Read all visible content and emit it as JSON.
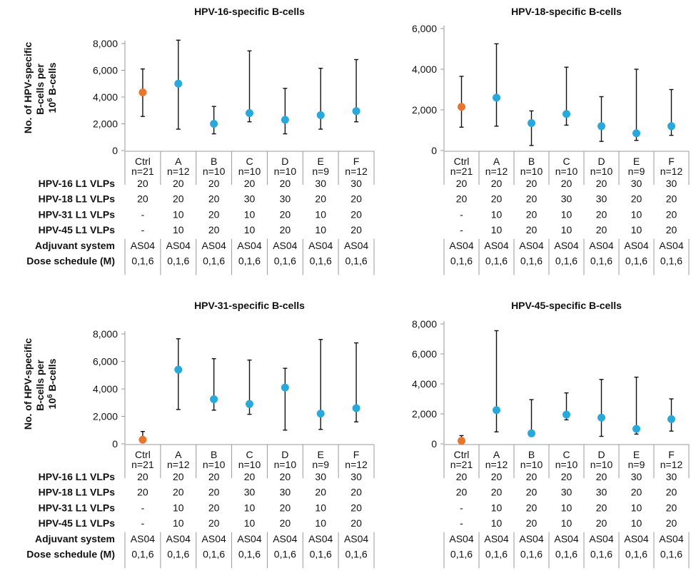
{
  "row_labels": [
    "HPV-16 L1 VLPs",
    "HPV-18 L1 VLPs",
    "HPV-31 L1 VLPs",
    "HPV-45 L1 VLPs",
    "Adjuvant system",
    "Dose schedule (M)"
  ],
  "y_axis_label": [
    "No. of HPV-specific",
    "B-cells per",
    "10",
    "6",
    " B-cells"
  ],
  "groups": [
    {
      "name": "Ctrl",
      "n": "n=21",
      "hpv16": "20",
      "hpv18": "20",
      "hpv31": "-",
      "hpv45": "-",
      "adjuvant": "AS04",
      "schedule": "0,1,6"
    },
    {
      "name": "A",
      "n": "n=12",
      "hpv16": "20",
      "hpv18": "20",
      "hpv31": "10",
      "hpv45": "10",
      "adjuvant": "AS04",
      "schedule": "0,1,6"
    },
    {
      "name": "B",
      "n": "n=10",
      "hpv16": "20",
      "hpv18": "20",
      "hpv31": "20",
      "hpv45": "20",
      "adjuvant": "AS04",
      "schedule": "0,1,6"
    },
    {
      "name": "C",
      "n": "n=10",
      "hpv16": "20",
      "hpv18": "30",
      "hpv31": "10",
      "hpv45": "10",
      "adjuvant": "AS04",
      "schedule": "0,1,6"
    },
    {
      "name": "D",
      "n": "n=10",
      "hpv16": "20",
      "hpv18": "30",
      "hpv31": "20",
      "hpv45": "20",
      "adjuvant": "AS04",
      "schedule": "0,1,6"
    },
    {
      "name": "E",
      "n": "n=9",
      "hpv16": "30",
      "hpv18": "20",
      "hpv31": "10",
      "hpv45": "10",
      "adjuvant": "AS04",
      "schedule": "0,1,6"
    },
    {
      "name": "F",
      "n": "n=12",
      "hpv16": "30",
      "hpv18": "20",
      "hpv31": "20",
      "hpv45": "20",
      "adjuvant": "AS04",
      "schedule": "0,1,6"
    }
  ],
  "colors": {
    "control": "#e8762d",
    "vaccine": "#29a9db",
    "axis": "#999999",
    "text": "#111111"
  },
  "chart_data": [
    {
      "type": "scatter",
      "title": "HPV-16-specific B-cells",
      "ylim": [
        0,
        8000
      ],
      "yticks": [
        "0",
        "2,000",
        "4,000",
        "6,000",
        "8,000"
      ],
      "ytick_values": [
        0,
        2000,
        4000,
        6000,
        8000
      ],
      "categories": [
        "Ctrl",
        "A",
        "B",
        "C",
        "D",
        "E",
        "F"
      ],
      "values": [
        4350,
        5000,
        2000,
        2800,
        2300,
        2650,
        2950
      ],
      "error_low": [
        2550,
        1600,
        1250,
        2150,
        1250,
        1600,
        2150
      ],
      "error_high": [
        6100,
        8250,
        3300,
        7450,
        4650,
        6150,
        6800
      ]
    },
    {
      "type": "scatter",
      "title": "HPV-18-specific B-cells",
      "ylim": [
        0,
        6000
      ],
      "yticks": [
        "0",
        "2,000",
        "4,000",
        "6,000"
      ],
      "ytick_values": [
        0,
        2000,
        4000,
        6000
      ],
      "categories": [
        "Ctrl",
        "A",
        "B",
        "C",
        "D",
        "E",
        "F"
      ],
      "values": [
        2150,
        2600,
        1350,
        1800,
        1200,
        850,
        1200
      ],
      "error_low": [
        1150,
        1200,
        250,
        1250,
        450,
        500,
        750
      ],
      "error_high": [
        3650,
        5250,
        1950,
        4100,
        2650,
        4000,
        3000
      ]
    },
    {
      "type": "scatter",
      "title": "HPV-31-specific B-cells",
      "ylim": [
        0,
        8000
      ],
      "yticks": [
        "0",
        "2,000",
        "4,000",
        "6,000",
        "8,000"
      ],
      "ytick_values": [
        0,
        2000,
        4000,
        6000,
        8000
      ],
      "categories": [
        "Ctrl",
        "A",
        "B",
        "C",
        "D",
        "E",
        "F"
      ],
      "values": [
        300,
        5400,
        3250,
        2900,
        4100,
        2200,
        2600
      ],
      "error_low": [
        100,
        2500,
        2450,
        2150,
        1000,
        1050,
        1600
      ],
      "error_high": [
        900,
        7650,
        6200,
        6100,
        5500,
        7600,
        7350
      ]
    },
    {
      "type": "scatter",
      "title": "HPV-45-specific B-cells",
      "ylim": [
        0,
        8000
      ],
      "yticks": [
        "0",
        "2,000",
        "4,000",
        "6,000",
        "8,000"
      ],
      "ytick_values": [
        0,
        2000,
        4000,
        6000,
        8000
      ],
      "categories": [
        "Ctrl",
        "A",
        "B",
        "C",
        "D",
        "E",
        "F"
      ],
      "values": [
        200,
        2250,
        700,
        1950,
        1750,
        1000,
        1650
      ],
      "error_low": [
        100,
        800,
        500,
        1600,
        500,
        650,
        850
      ],
      "error_high": [
        550,
        7550,
        2950,
        3400,
        4300,
        4450,
        3000
      ]
    }
  ]
}
